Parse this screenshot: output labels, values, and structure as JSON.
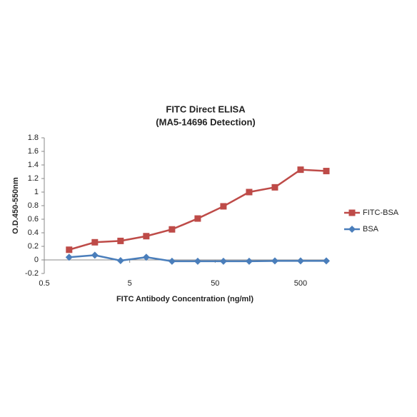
{
  "chart_data": {
    "type": "line",
    "title": "FITC Direct ELISA",
    "subtitle": "(MA5-14696 Detection)",
    "x_label": "FITC Antibody Concentration (ng/ml)",
    "y_label": "O.D.450-550nm",
    "x": [
      0.9765625,
      1.953125,
      3.90625,
      7.8125,
      15.625,
      31.25,
      62.5,
      125,
      250,
      500,
      1000
    ],
    "series": [
      {
        "name": "FITC-BSA",
        "color": "#be4b48",
        "marker": "square",
        "values": [
          0.15,
          0.26,
          0.28,
          0.35,
          0.45,
          0.61,
          0.79,
          1.0,
          1.07,
          1.33,
          1.31
        ]
      },
      {
        "name": "BSA",
        "color": "#4a7ebb",
        "marker": "diamond",
        "values": [
          0.04,
          0.07,
          -0.01,
          0.04,
          -0.02,
          -0.02,
          -0.02,
          -0.02,
          -0.015,
          -0.015,
          -0.015
        ]
      }
    ],
    "xscale": "log",
    "xlim": [
      0.5,
      1000
    ],
    "xticks": [
      0.5,
      5,
      50,
      500
    ],
    "ylim": [
      -0.2,
      1.8
    ],
    "yticks": [
      -0.2,
      0,
      0.2,
      0.4,
      0.6,
      0.8,
      1,
      1.2,
      1.4,
      1.6,
      1.8
    ],
    "grid": false,
    "legend": "right"
  }
}
